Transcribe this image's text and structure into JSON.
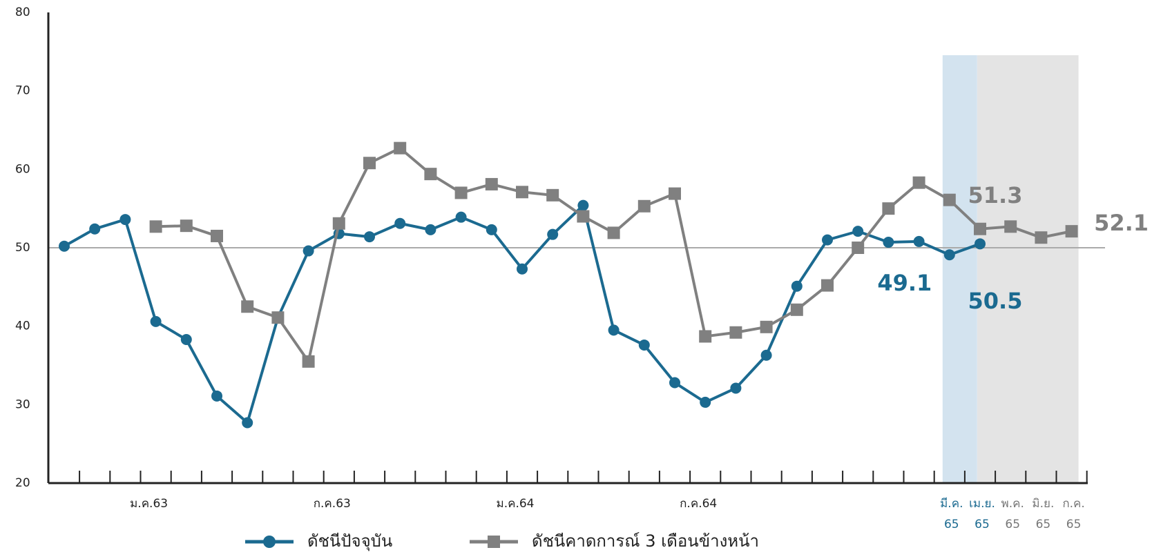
{
  "chart_data": {
    "type": "line",
    "categories": [
      null,
      null,
      null,
      "ม.ค.63",
      null,
      null,
      null,
      null,
      null,
      "ก.ค.63",
      null,
      null,
      null,
      null,
      null,
      "ม.ค.64",
      null,
      null,
      null,
      null,
      null,
      "ก.ค.64",
      null,
      null,
      null,
      null,
      null,
      null,
      null,
      "มี.ค. 65",
      "เม.ย. 65",
      "พ.ค. 65",
      "มิ.ย. 65",
      "ก.ค. 65"
    ],
    "series": [
      {
        "name": "ดัชนีปัจจุบัน",
        "color": "#1b6a90",
        "values": [
          50.2,
          52.4,
          53.6,
          40.6,
          38.3,
          31.1,
          27.7,
          41.1,
          49.6,
          51.8,
          51.4,
          53.1,
          52.3,
          53.9,
          52.3,
          47.3,
          51.7,
          55.4,
          39.5,
          37.6,
          32.8,
          30.3,
          32.1,
          36.3,
          45.1,
          51.0,
          52.1,
          50.7,
          50.8,
          49.1,
          50.5,
          null,
          null,
          null
        ]
      },
      {
        "name": "ดัชนีคาดการณ์ 3 เดือนข้างหน้า",
        "color": "#808080",
        "values": [
          null,
          null,
          null,
          52.7,
          52.8,
          51.5,
          42.5,
          41.1,
          35.5,
          53.1,
          60.8,
          62.7,
          59.4,
          57.0,
          58.1,
          57.1,
          56.7,
          54.0,
          51.9,
          55.3,
          56.9,
          38.7,
          39.2,
          39.9,
          42.1,
          45.2,
          50.0,
          55.0,
          58.3,
          56.1,
          52.4,
          52.7,
          51.3,
          52.1
        ]
      }
    ],
    "ylim": [
      20,
      80
    ],
    "yticks": [
      20,
      30,
      40,
      50,
      60,
      70,
      80
    ],
    "reference_line": 50
  }
}
